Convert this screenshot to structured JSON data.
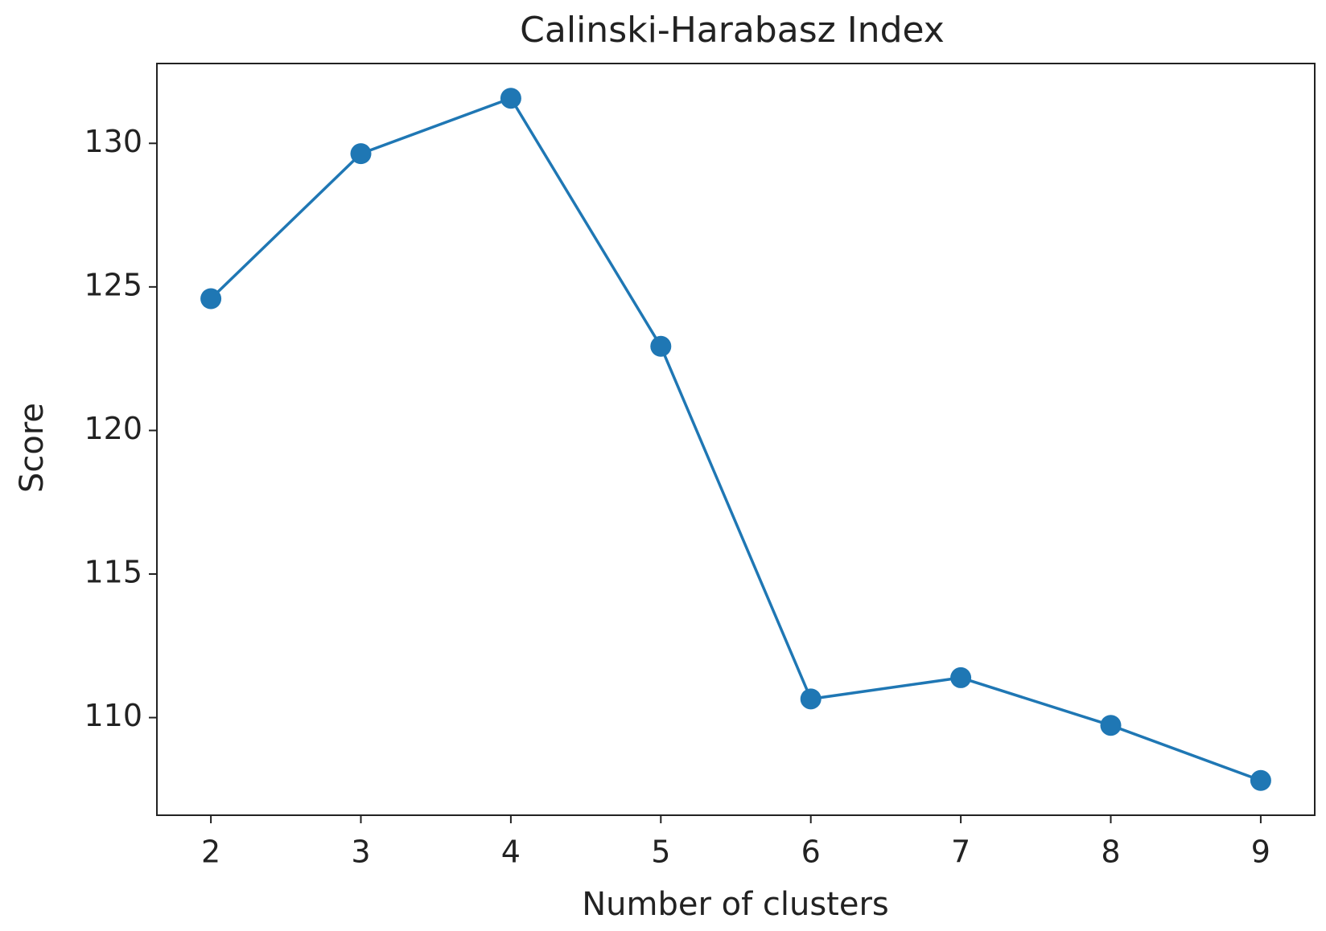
{
  "chart_data": {
    "type": "line",
    "title": "Calinski-Harabasz Index",
    "x_label": "Number of clusters",
    "y_label": "Score",
    "x": [
      2,
      3,
      4,
      5,
      6,
      7,
      8,
      9
    ],
    "series": [
      {
        "color": "#1f77b4",
        "values": [
          124.59,
          129.64,
          131.57,
          122.93,
          110.65,
          111.39,
          109.73,
          107.81
        ]
      }
    ],
    "xlim": [
      1.64,
      9.36
    ],
    "ylim": [
      106.6,
      132.78
    ],
    "xticks": [
      2,
      3,
      4,
      5,
      6,
      7,
      8,
      9
    ],
    "yticks": [
      110,
      115,
      120,
      125,
      130
    ],
    "markers": true,
    "grid": false
  }
}
